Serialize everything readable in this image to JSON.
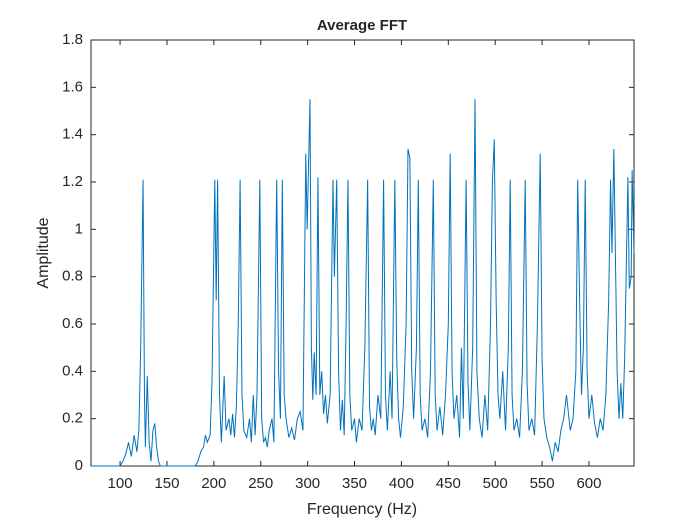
{
  "chart_data": {
    "type": "line",
    "title": "Average FFT",
    "x_label": "Frequency (Hz)",
    "y_label": "Amplitude",
    "color": "#0072bd",
    "x": [
      69,
      100,
      103,
      106,
      109,
      112,
      115,
      118,
      120,
      122,
      124.5,
      126,
      127,
      129,
      131,
      133,
      135,
      137,
      139,
      141,
      143,
      150,
      180,
      183,
      186,
      189,
      191,
      193,
      196,
      198,
      201,
      202.5,
      204,
      206,
      208,
      211,
      213,
      216,
      218,
      220,
      222,
      224,
      226,
      228,
      230,
      232,
      235,
      238,
      240,
      242,
      244,
      246,
      249,
      251,
      253,
      255,
      257,
      259,
      262,
      264,
      267,
      269,
      271,
      273,
      275,
      277,
      280,
      283,
      286,
      289,
      292,
      295,
      298,
      299.5,
      302.5,
      304,
      305.5,
      307,
      309,
      311,
      313,
      315,
      317,
      319,
      321,
      324,
      327,
      328.5,
      331,
      333,
      335,
      337,
      339,
      341,
      343,
      345,
      347,
      350,
      352,
      355,
      358,
      361,
      364,
      366,
      368,
      370,
      372,
      375,
      378,
      381,
      383,
      385,
      388,
      390,
      393,
      395,
      397,
      399,
      402,
      405,
      407,
      409,
      411,
      413,
      416,
      418,
      420,
      422,
      425,
      428,
      431,
      434,
      436,
      438,
      441,
      444,
      447,
      450,
      452,
      454,
      456,
      459,
      462,
      464,
      466,
      469,
      471,
      473,
      476,
      478.5,
      480.5,
      483,
      486,
      489,
      492,
      495,
      497,
      499,
      501,
      503,
      505,
      508,
      511,
      514,
      516,
      518,
      520,
      523,
      526,
      529,
      532,
      534,
      536,
      539,
      542,
      545,
      548,
      550,
      552,
      555,
      558,
      561,
      564,
      567,
      570,
      573,
      576,
      580,
      583,
      586,
      588,
      590,
      592,
      594,
      596,
      598,
      600,
      603,
      606,
      609,
      612,
      615,
      618,
      621,
      623,
      624.5,
      626.5,
      628.5,
      630,
      632,
      634,
      636,
      638,
      641.5,
      643,
      645,
      646,
      648
    ],
    "values": [
      0,
      0,
      0.02,
      0.05,
      0.1,
      0.04,
      0.13,
      0.06,
      0.15,
      0.5,
      1.21,
      0.3,
      0.08,
      0.38,
      0.1,
      0.02,
      0.15,
      0.18,
      0.08,
      0.02,
      0,
      0,
      0,
      0.02,
      0.06,
      0.08,
      0.13,
      0.1,
      0.13,
      0.35,
      1.21,
      0.7,
      1.21,
      0.3,
      0.1,
      0.38,
      0.15,
      0.2,
      0.13,
      0.22,
      0.12,
      0.25,
      0.6,
      1.21,
      0.3,
      0.15,
      0.12,
      0.2,
      0.1,
      0.3,
      0.13,
      0.3,
      1.21,
      0.2,
      0.1,
      0.12,
      0.08,
      0.15,
      0.2,
      0.1,
      1.21,
      0.4,
      0.2,
      1.21,
      0.3,
      0.2,
      0.12,
      0.16,
      0.11,
      0.2,
      0.23,
      0.15,
      1.32,
      1.0,
      1.55,
      0.5,
      0.28,
      0.48,
      0.3,
      1.22,
      0.3,
      0.4,
      0.22,
      0.3,
      0.18,
      0.3,
      1.21,
      0.8,
      1.21,
      0.4,
      0.15,
      0.28,
      0.13,
      0.6,
      1.21,
      0.3,
      0.15,
      0.2,
      0.1,
      0.2,
      0.15,
      0.5,
      1.21,
      0.25,
      0.15,
      0.2,
      0.13,
      0.3,
      0.2,
      1.21,
      0.3,
      0.15,
      0.4,
      0.2,
      1.21,
      0.45,
      0.2,
      0.12,
      0.25,
      0.6,
      1.34,
      1.3,
      0.4,
      0.2,
      0.5,
      1.21,
      0.3,
      0.15,
      0.2,
      0.12,
      0.4,
      1.21,
      0.3,
      0.15,
      0.25,
      0.13,
      0.3,
      0.6,
      1.32,
      0.4,
      0.2,
      0.3,
      0.12,
      0.5,
      0.2,
      1.21,
      0.35,
      0.15,
      0.5,
      1.55,
      0.4,
      0.2,
      0.12,
      0.3,
      0.15,
      0.6,
      1.2,
      1.38,
      0.7,
      0.3,
      0.2,
      0.4,
      0.15,
      0.5,
      1.21,
      0.3,
      0.15,
      0.2,
      0.12,
      0.4,
      1.21,
      0.35,
      0.15,
      0.2,
      0.13,
      0.6,
      1.32,
      0.45,
      0.2,
      0.12,
      0.08,
      0.02,
      0.1,
      0.06,
      0.15,
      0.2,
      0.3,
      0.15,
      0.2,
      0.4,
      1.21,
      0.7,
      0.3,
      0.5,
      1.21,
      0.4,
      0.2,
      0.3,
      0.18,
      0.12,
      0.2,
      0.15,
      0.3,
      0.7,
      1.21,
      0.9,
      1.34,
      0.8,
      0.4,
      0.2,
      0.35,
      0.2,
      0.45,
      1.22,
      0.75,
      0.8,
      1.25,
      0.9
    ],
    "xlim": [
      69,
      648
    ],
    "xticks": [
      100,
      150,
      200,
      250,
      300,
      350,
      400,
      450,
      500,
      550,
      600
    ],
    "ylim": [
      0,
      1.8
    ],
    "yticks": [
      0,
      0.2,
      0.4,
      0.6,
      0.8,
      1,
      1.2,
      1.4,
      1.6,
      1.8
    ],
    "grid": false
  }
}
